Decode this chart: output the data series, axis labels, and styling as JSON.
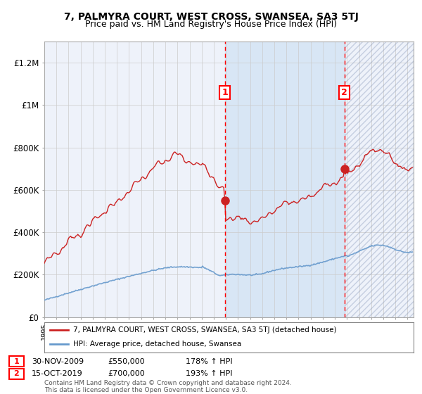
{
  "title": "7, PALMYRA COURT, WEST CROSS, SWANSEA, SA3 5TJ",
  "subtitle": "Price paid vs. HM Land Registry's House Price Index (HPI)",
  "legend_line1": "7, PALMYRA COURT, WEST CROSS, SWANSEA, SA3 5TJ (detached house)",
  "legend_line2": "HPI: Average price, detached house, Swansea",
  "sale1_date": "30-NOV-2009",
  "sale1_price": "£550,000",
  "sale1_hpi": "178% ↑ HPI",
  "sale1_year": 2009.92,
  "sale1_value": 550000,
  "sale2_date": "15-OCT-2019",
  "sale2_price": "£700,000",
  "sale2_hpi": "193% ↑ HPI",
  "sale2_year": 2019.79,
  "sale2_value": 700000,
  "footnote": "Contains HM Land Registry data © Crown copyright and database right 2024.\nThis data is licensed under the Open Government Licence v3.0.",
  "hpi_color": "#6699cc",
  "property_color": "#cc2222",
  "bg_color": "#ffffff",
  "plot_bg": "#eef2fa",
  "highlight_bg": "#d8e6f5",
  "grid_color": "#cccccc",
  "ylim_max": 1300000,
  "xlim_start": 1995.0,
  "xlim_end": 2025.5,
  "yticks": [
    0,
    200000,
    400000,
    600000,
    800000,
    1000000,
    1200000
  ],
  "ylabels": [
    "£0",
    "£200K",
    "£400K",
    "£600K",
    "£800K",
    "£1M",
    "£1.2M"
  ]
}
